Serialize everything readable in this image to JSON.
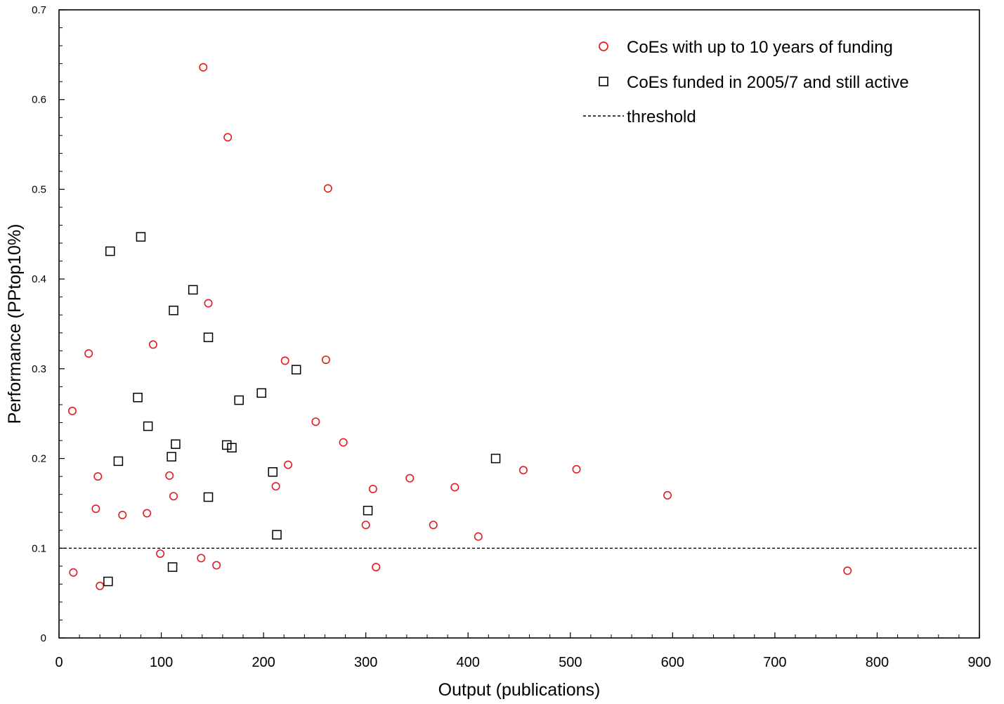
{
  "chart_data": {
    "type": "scatter",
    "title": "",
    "xlabel": "Output (publications)",
    "ylabel": "Performance (PPtop10%)",
    "xlim": [
      0,
      900
    ],
    "ylim": [
      0,
      0.7
    ],
    "x_ticks": [
      "0",
      "100",
      "200",
      "300",
      "400",
      "500",
      "600",
      "700",
      "800",
      "900"
    ],
    "y_ticks": [
      "0",
      "0.1",
      "0.2",
      "0.3",
      "0.4",
      "0.5",
      "0.6",
      "0.7"
    ],
    "grid": false,
    "legend_position": "top-right",
    "series": [
      {
        "name": "CoEs with up to 10 years of funding",
        "marker": "circle",
        "color": "#e8191e",
        "points": [
          [
            141,
            0.636
          ],
          [
            165,
            0.558
          ],
          [
            263,
            0.501
          ],
          [
            146,
            0.373
          ],
          [
            29,
            0.317
          ],
          [
            92,
            0.327
          ],
          [
            261,
            0.31
          ],
          [
            221,
            0.309
          ],
          [
            13,
            0.253
          ],
          [
            251,
            0.241
          ],
          [
            278,
            0.218
          ],
          [
            224,
            0.193
          ],
          [
            38,
            0.18
          ],
          [
            108,
            0.181
          ],
          [
            112,
            0.158
          ],
          [
            212,
            0.169
          ],
          [
            307,
            0.166
          ],
          [
            343,
            0.178
          ],
          [
            387,
            0.168
          ],
          [
            454,
            0.187
          ],
          [
            506,
            0.188
          ],
          [
            595,
            0.159
          ],
          [
            36,
            0.144
          ],
          [
            62,
            0.137
          ],
          [
            86,
            0.139
          ],
          [
            300,
            0.126
          ],
          [
            366,
            0.126
          ],
          [
            410,
            0.113
          ],
          [
            99,
            0.094
          ],
          [
            139,
            0.089
          ],
          [
            154,
            0.081
          ],
          [
            310,
            0.079
          ],
          [
            14,
            0.073
          ],
          [
            40,
            0.058
          ],
          [
            771,
            0.075
          ]
        ]
      },
      {
        "name": "CoEs funded in 2005/7 and still active",
        "marker": "square",
        "color": "#000000",
        "points": [
          [
            50,
            0.431
          ],
          [
            80,
            0.447
          ],
          [
            131,
            0.388
          ],
          [
            112,
            0.365
          ],
          [
            146,
            0.335
          ],
          [
            232,
            0.299
          ],
          [
            198,
            0.273
          ],
          [
            176,
            0.265
          ],
          [
            77,
            0.268
          ],
          [
            87,
            0.236
          ],
          [
            114,
            0.216
          ],
          [
            164,
            0.215
          ],
          [
            169,
            0.212
          ],
          [
            110,
            0.202
          ],
          [
            58,
            0.197
          ],
          [
            427,
            0.2
          ],
          [
            209,
            0.185
          ],
          [
            146,
            0.157
          ],
          [
            302,
            0.142
          ],
          [
            213,
            0.115
          ],
          [
            111,
            0.079
          ],
          [
            48,
            0.063
          ]
        ]
      }
    ],
    "threshold": {
      "name": "threshold",
      "y": 0.1,
      "style": "dashed",
      "color": "#000000"
    }
  }
}
